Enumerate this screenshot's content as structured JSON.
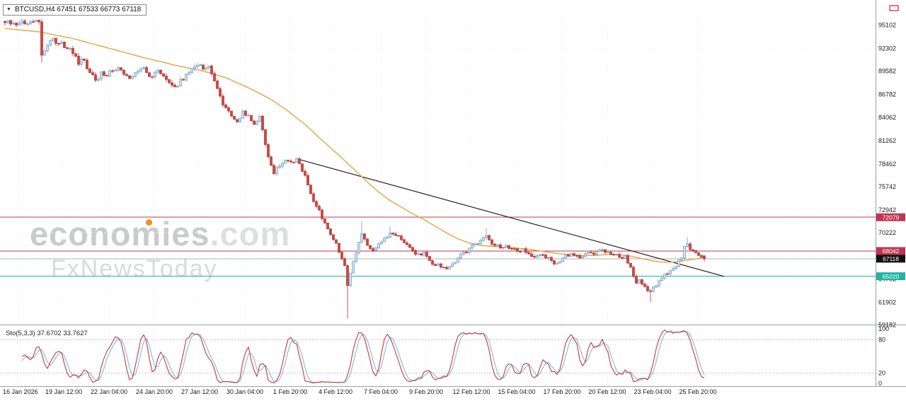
{
  "window": {
    "symbol_box": {
      "dropdown_glyph": "▼",
      "text": "BTCUSD,H4  67451 67533 66773 67118"
    }
  },
  "watermark": {
    "name": "economies",
    "tld": ".com",
    "tagline": "FxNewsToday",
    "accent_color": "#f2901d"
  },
  "quote": {
    "symbol": "BTCUSD",
    "timeframe": "H4",
    "open": 67451,
    "high": 67533,
    "low": 66773,
    "close": 67118
  },
  "chart_data": {
    "type": "candlestick",
    "title": "BTCUSD,H4",
    "ylim": [
      59222,
      95992
    ],
    "y_axis_labels": [
      95102,
      92302,
      89582,
      86782,
      84062,
      81262,
      78462,
      75742,
      72942,
      70222,
      67502,
      64702,
      61902,
      59182
    ],
    "x_axis_labels": [
      "16 Jan 2026",
      "19 Jan 12:00",
      "22 Jan 04:00",
      "24 Jan 20:00",
      "27 Jan 12:00",
      "30 Jan 04:00",
      "1 Feb 20:00",
      "4 Feb 12:00",
      "7 Feb 04:00",
      "9 Feb 20:00",
      "12 Feb 12:00",
      "15 Feb 04:00",
      "17 Feb 20:00",
      "20 Feb 12:00",
      "23 Feb 04:00",
      "25 Feb 20:00"
    ],
    "candle_count": 248,
    "close_anchors": [
      [
        0,
        95400
      ],
      [
        4,
        95100
      ],
      [
        8,
        95250
      ],
      [
        12,
        95500
      ],
      [
        13,
        91500
      ],
      [
        15,
        92700
      ],
      [
        17,
        93500
      ],
      [
        19,
        92900
      ],
      [
        22,
        92300
      ],
      [
        24,
        91700
      ],
      [
        26,
        90400
      ],
      [
        28,
        90900
      ],
      [
        30,
        89400
      ],
      [
        32,
        88500
      ],
      [
        34,
        89500
      ],
      [
        36,
        89000
      ],
      [
        38,
        89600
      ],
      [
        40,
        90000
      ],
      [
        42,
        89200
      ],
      [
        44,
        88700
      ],
      [
        46,
        89400
      ],
      [
        48,
        89900
      ],
      [
        50,
        89400
      ],
      [
        52,
        88900
      ],
      [
        54,
        89700
      ],
      [
        56,
        89000
      ],
      [
        58,
        88200
      ],
      [
        60,
        87700
      ],
      [
        62,
        88600
      ],
      [
        64,
        89200
      ],
      [
        66,
        89900
      ],
      [
        68,
        90300
      ],
      [
        70,
        89800
      ],
      [
        72,
        90200
      ],
      [
        74,
        88400
      ],
      [
        76,
        86600
      ],
      [
        78,
        85200
      ],
      [
        80,
        84200
      ],
      [
        82,
        83500
      ],
      [
        84,
        84800
      ],
      [
        86,
        84300
      ],
      [
        88,
        83200
      ],
      [
        90,
        84200
      ],
      [
        92,
        80800
      ],
      [
        94,
        78300
      ],
      [
        95,
        77300
      ],
      [
        97,
        78200
      ],
      [
        99,
        78900
      ],
      [
        101,
        78700
      ],
      [
        103,
        79100
      ],
      [
        104,
        78500
      ],
      [
        106,
        77100
      ],
      [
        108,
        74900
      ],
      [
        110,
        73400
      ],
      [
        112,
        71900
      ],
      [
        114,
        70700
      ],
      [
        116,
        69400
      ],
      [
        118,
        67900
      ],
      [
        120,
        66300
      ],
      [
        121,
        63900
      ],
      [
        122,
        65400
      ],
      [
        123,
        66800
      ],
      [
        125,
        69100
      ],
      [
        126,
        70100
      ],
      [
        128,
        68700
      ],
      [
        130,
        68100
      ],
      [
        132,
        68900
      ],
      [
        134,
        69600
      ],
      [
        136,
        70200
      ],
      [
        138,
        69900
      ],
      [
        140,
        69400
      ],
      [
        142,
        68800
      ],
      [
        144,
        68100
      ],
      [
        146,
        67700
      ],
      [
        148,
        67900
      ],
      [
        150,
        66900
      ],
      [
        152,
        66300
      ],
      [
        154,
        66100
      ],
      [
        156,
        65900
      ],
      [
        158,
        66500
      ],
      [
        160,
        67200
      ],
      [
        162,
        67900
      ],
      [
        164,
        68400
      ],
      [
        166,
        68900
      ],
      [
        168,
        69300
      ],
      [
        170,
        69900
      ],
      [
        171,
        69400
      ],
      [
        173,
        68700
      ],
      [
        175,
        68400
      ],
      [
        177,
        68700
      ],
      [
        179,
        68300
      ],
      [
        181,
        68000
      ],
      [
        183,
        68300
      ],
      [
        185,
        67700
      ],
      [
        187,
        67300
      ],
      [
        189,
        67600
      ],
      [
        191,
        67200
      ],
      [
        193,
        66900
      ],
      [
        195,
        66600
      ],
      [
        197,
        67200
      ],
      [
        199,
        67400
      ],
      [
        201,
        67500
      ],
      [
        203,
        67200
      ],
      [
        205,
        67700
      ],
      [
        207,
        67800
      ],
      [
        209,
        68000
      ],
      [
        211,
        68200
      ],
      [
        213,
        67900
      ],
      [
        215,
        67600
      ],
      [
        217,
        67300
      ],
      [
        219,
        67500
      ],
      [
        221,
        66100
      ],
      [
        222,
        65000
      ],
      [
        223,
        64200
      ],
      [
        224,
        64600
      ],
      [
        226,
        63800
      ],
      [
        228,
        63200
      ],
      [
        229,
        63700
      ],
      [
        231,
        64500
      ],
      [
        233,
        65300
      ],
      [
        235,
        65700
      ],
      [
        237,
        66200
      ],
      [
        239,
        67200
      ],
      [
        240,
        68600
      ],
      [
        241,
        68900
      ],
      [
        243,
        68100
      ],
      [
        245,
        67500
      ],
      [
        246,
        67350
      ],
      [
        247,
        67118
      ]
    ],
    "wick_overrides": [
      {
        "i": 13,
        "low": 90600
      },
      {
        "i": 121,
        "low": 59950
      },
      {
        "i": 126,
        "high": 71600
      },
      {
        "i": 136,
        "high": 71000
      },
      {
        "i": 170,
        "high": 70800
      },
      {
        "i": 228,
        "low": 61900
      },
      {
        "i": 241,
        "high": 69700
      }
    ],
    "moving_average": {
      "name": "MA",
      "color": "#e8a33d",
      "anchors": [
        [
          0,
          94700
        ],
        [
          12,
          94300
        ],
        [
          24,
          93500
        ],
        [
          36,
          92400
        ],
        [
          48,
          91300
        ],
        [
          60,
          90300
        ],
        [
          70,
          89600
        ],
        [
          78,
          88800
        ],
        [
          86,
          87600
        ],
        [
          94,
          86200
        ],
        [
          100,
          84800
        ],
        [
          106,
          83200
        ],
        [
          112,
          81300
        ],
        [
          118,
          79500
        ],
        [
          124,
          77600
        ],
        [
          128,
          76300
        ],
        [
          132,
          75100
        ],
        [
          136,
          74100
        ],
        [
          140,
          73300
        ],
        [
          144,
          72500
        ],
        [
          148,
          71800
        ],
        [
          152,
          71000
        ],
        [
          156,
          70200
        ],
        [
          160,
          69500
        ],
        [
          164,
          69000
        ],
        [
          168,
          68700
        ],
        [
          172,
          68600
        ],
        [
          176,
          68500
        ],
        [
          180,
          68400
        ],
        [
          184,
          68300
        ],
        [
          188,
          68100
        ],
        [
          192,
          67900
        ],
        [
          196,
          67700
        ],
        [
          200,
          67600
        ],
        [
          204,
          67500
        ],
        [
          208,
          67500
        ],
        [
          212,
          67600
        ],
        [
          216,
          67600
        ],
        [
          220,
          67500
        ],
        [
          224,
          67200
        ],
        [
          228,
          66900
        ],
        [
          232,
          66700
        ],
        [
          236,
          66700
        ],
        [
          240,
          66900
        ],
        [
          244,
          67100
        ],
        [
          247,
          67300
        ]
      ]
    },
    "trendline": {
      "color": "#222222",
      "from": {
        "i": 104,
        "price": 79000
      },
      "to": {
        "i": 254,
        "price": 65000
      }
    },
    "h_lines": [
      {
        "price": 72079,
        "color": "#c03552",
        "label_bg": "#c03552",
        "is_current": false
      },
      {
        "price": 68042,
        "color": "#c03552",
        "label_bg": "#c03552",
        "is_current": false
      },
      {
        "price": 67118,
        "color": "#aab4bc",
        "label_bg": "#111111",
        "is_current": true
      },
      {
        "price": 65020,
        "color": "#1fb5a3",
        "label_bg": "#1fb5a3",
        "is_current": false
      }
    ],
    "sub_chart": {
      "type": "stochastic",
      "label": "Sto(5,3,3)",
      "values_text": "37.6702 33.7627",
      "main_value": 37.6702,
      "signal_value": 33.7627,
      "k_period": 5,
      "d_period": 3,
      "slowing": 3,
      "levels": [
        20,
        80
      ],
      "scale_labels": [
        100,
        80,
        20,
        0
      ],
      "main_color": "#c23b3b",
      "signal_color": "#86b6da"
    },
    "palette": {
      "bull_fill": "#cfe3f2",
      "bull_stroke": "#6b98c2",
      "bear_fill": "#d6473f",
      "bear_stroke": "#a8302c",
      "grid": "#ececec",
      "axis_text": "#1a1a1a",
      "separator": "#9aa0a6",
      "level_line": "#d6bdbd",
      "marker": "#cc2222"
    }
  }
}
